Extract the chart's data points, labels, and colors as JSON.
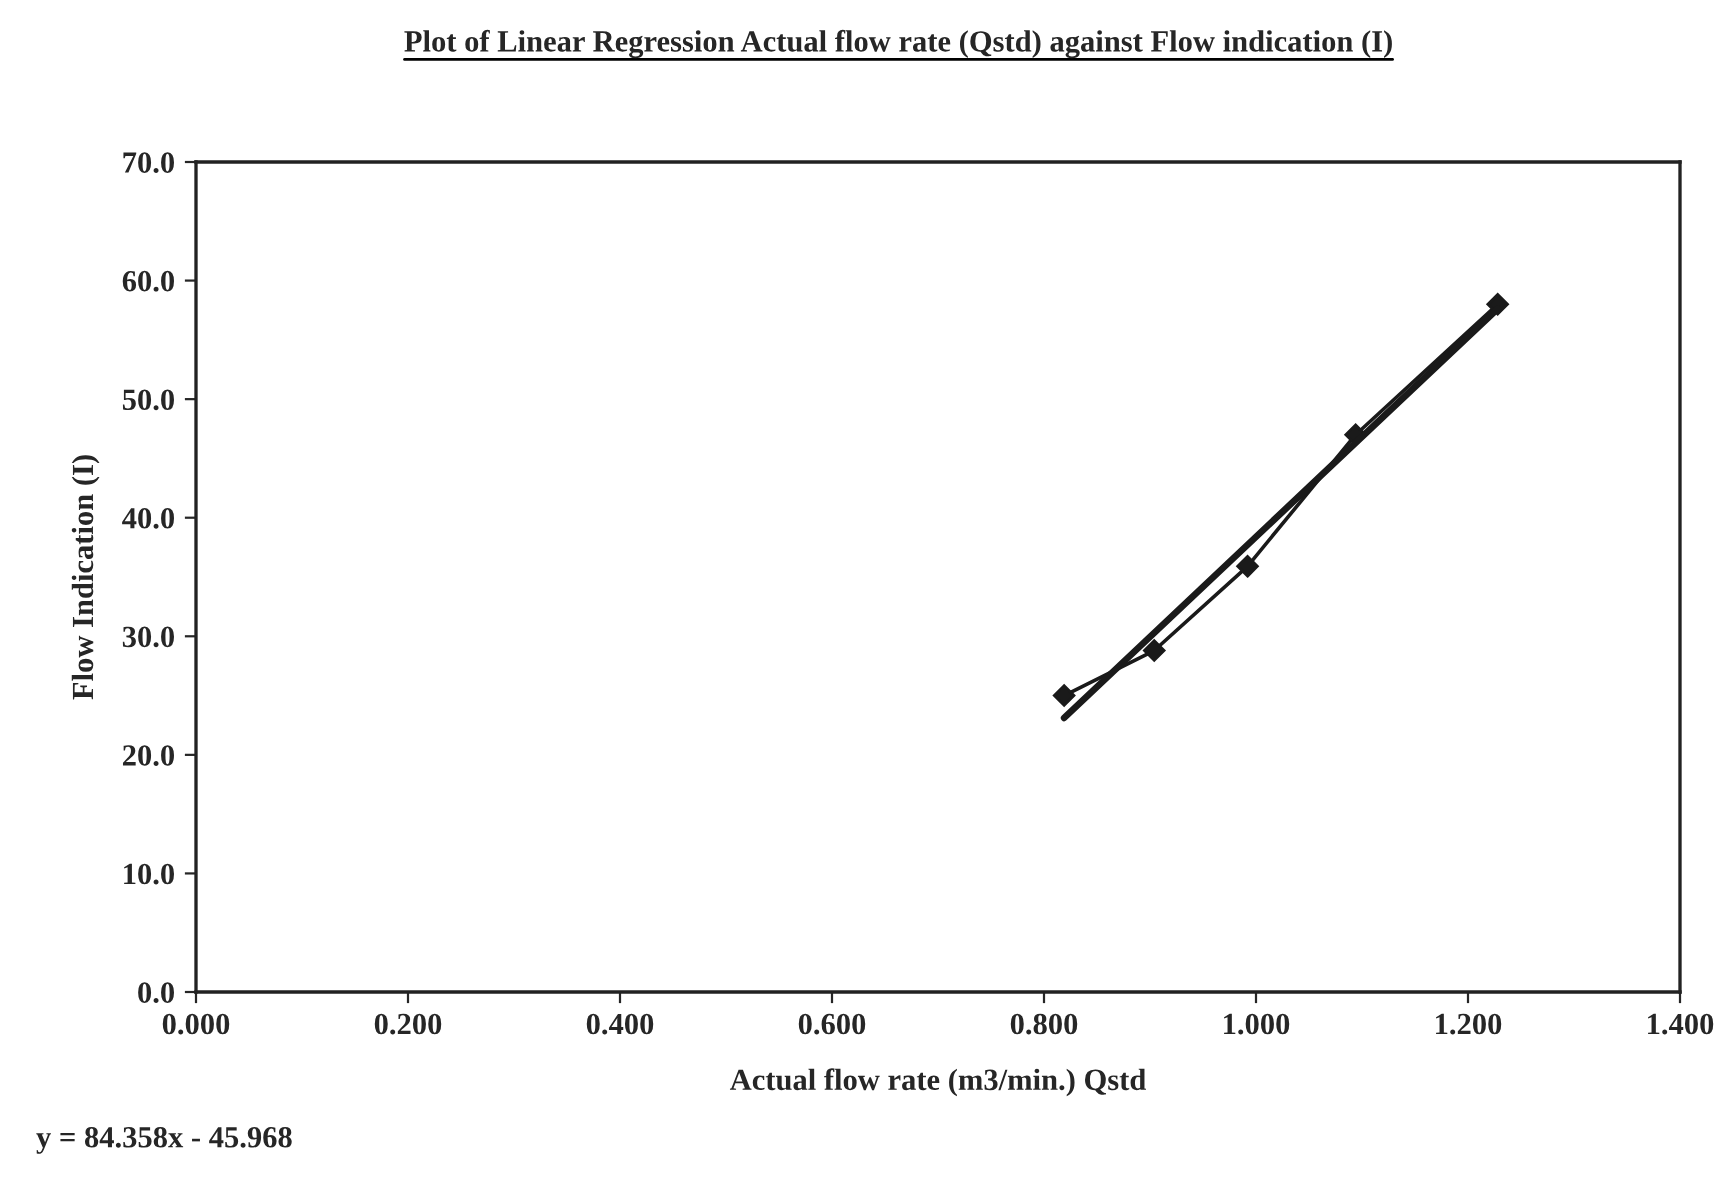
{
  "chart_data": {
    "type": "line",
    "title": "Plot of Linear Regression Actual flow rate (Qstd) against Flow indication (I)",
    "xlabel": "Actual flow rate (m3/min.) Qstd",
    "ylabel": "Flow Indication (I)",
    "series": [
      {
        "color": "#1a1a1a",
        "x": [
          0.819,
          0.904,
          0.992,
          1.094,
          1.228
        ],
        "values": [
          25.0,
          28.8,
          35.9,
          47.0,
          58.0
        ],
        "marker": "diamond"
      },
      {
        "type": "line",
        "color": "#1a1a1a",
        "x": [
          0.819,
          1.228
        ],
        "values": [
          23.12,
          57.62
        ],
        "marker": "none"
      }
    ],
    "xlim": [
      0,
      1.4
    ],
    "xticks": [
      {
        "value": 0,
        "label": "0.000"
      },
      {
        "value": 0.2,
        "label": "0.200"
      },
      {
        "value": 0.4,
        "label": "0.400"
      },
      {
        "value": 0.6,
        "label": "0.600"
      },
      {
        "value": 0.8,
        "label": "0.800"
      },
      {
        "value": 1.0,
        "label": "1.000"
      },
      {
        "value": 1.2,
        "label": "1.200"
      },
      {
        "value": 1.4,
        "label": "1.400"
      }
    ],
    "ylim": [
      0,
      70
    ],
    "yticks": [
      {
        "value": 0,
        "label": "0.0"
      },
      {
        "value": 10,
        "label": "10.0"
      },
      {
        "value": 20,
        "label": "20.0"
      },
      {
        "value": 30,
        "label": "30.0"
      },
      {
        "value": 40,
        "label": "40.0"
      },
      {
        "value": 50,
        "label": "50.0"
      },
      {
        "value": 60,
        "label": "60.0"
      },
      {
        "value": 70,
        "label": "70.0"
      }
    ],
    "annotations": [
      "y = 84.358x - 45.968"
    ],
    "grid": false,
    "legend": false
  }
}
